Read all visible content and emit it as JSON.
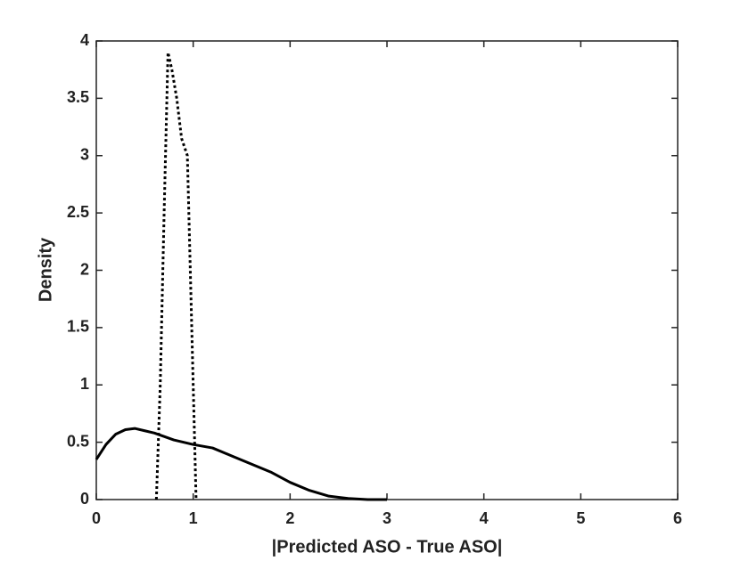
{
  "chart_data": {
    "type": "line",
    "xlabel": "|Predicted ASO - True ASO|",
    "ylabel": "Density",
    "xlim": [
      0,
      6
    ],
    "xticks": [
      0,
      1,
      2,
      3,
      4,
      5,
      6
    ],
    "ylim": [
      0,
      4
    ],
    "yticks": [
      0,
      0.5,
      1,
      1.5,
      2,
      2.5,
      3,
      3.5,
      4
    ],
    "grid": false,
    "box": true,
    "series": [
      {
        "color": "#000000",
        "dash": "solid",
        "x": [
          0,
          0.1,
          0.2,
          0.3,
          0.4,
          0.5,
          0.6,
          0.8,
          1.0,
          1.2,
          1.4,
          1.6,
          1.8,
          2.0,
          2.2,
          2.4,
          2.6,
          2.8,
          3.0
        ],
        "values": [
          0.35,
          0.48,
          0.57,
          0.61,
          0.62,
          0.6,
          0.58,
          0.52,
          0.48,
          0.45,
          0.38,
          0.31,
          0.24,
          0.15,
          0.08,
          0.03,
          0.01,
          0.0,
          0.0
        ]
      },
      {
        "color": "#000000",
        "dash": "dotted",
        "x": [
          0.62,
          0.66,
          0.7,
          0.74,
          0.78,
          0.83,
          0.88,
          0.94,
          0.97,
          1.0,
          1.03
        ],
        "values": [
          0.0,
          1.0,
          2.5,
          3.9,
          3.75,
          3.5,
          3.15,
          3.0,
          2.0,
          1.0,
          0.0
        ]
      }
    ]
  }
}
